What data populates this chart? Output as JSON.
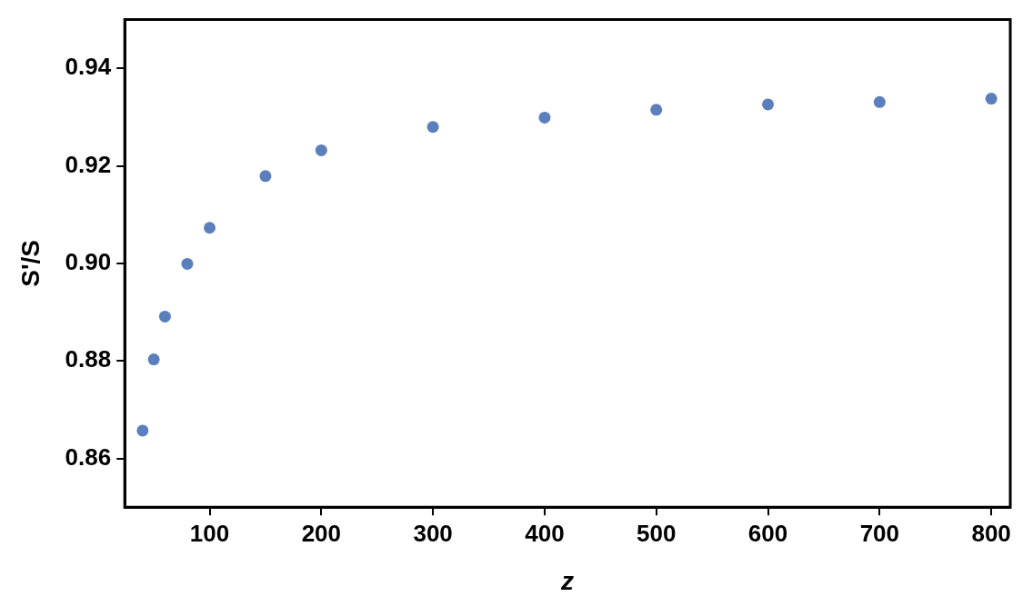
{
  "chart_data": {
    "type": "scatter",
    "xlabel": "z",
    "ylabel": "S'/S",
    "x": [
      40,
      50,
      60,
      80,
      100,
      150,
      200,
      300,
      400,
      500,
      600,
      700,
      800
    ],
    "series": [
      {
        "color": "#5b7fbc",
        "values": [
          0.8657,
          0.8803,
          0.8891,
          0.8999,
          0.9073,
          0.9179,
          0.9232,
          0.928,
          0.9299,
          0.9315,
          0.9326,
          0.9331,
          0.9338
        ]
      }
    ],
    "xlim": [
      24,
      817
    ],
    "xticks": [
      100,
      200,
      300,
      400,
      500,
      600,
      700,
      800
    ],
    "ylim": [
      0.85,
      0.95
    ],
    "yticks": [
      0.86,
      0.88,
      {
        "value": 0.9,
        "label": "0.90"
      },
      0.92,
      0.94
    ],
    "marker": "circle",
    "legend": false,
    "grid": false
  }
}
